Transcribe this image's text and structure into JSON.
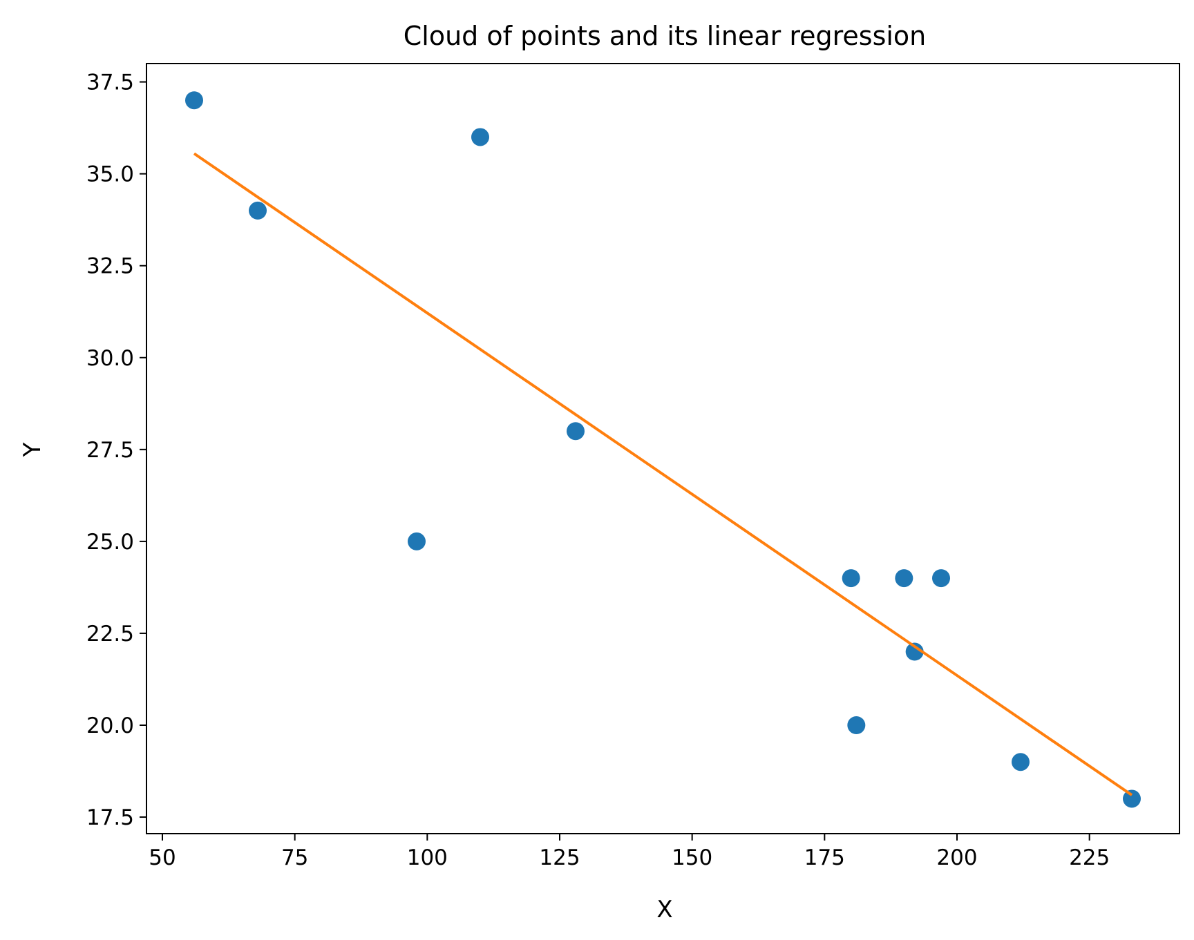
{
  "chart_data": {
    "type": "scatter",
    "title": "Cloud of points and its linear regression",
    "xlabel": "X",
    "ylabel": "Y",
    "xlim": [
      47,
      242
    ],
    "ylim": [
      17.05,
      38.0
    ],
    "xticks": [
      50,
      75,
      100,
      125,
      150,
      175,
      200,
      225
    ],
    "xtick_labels": [
      "50",
      "75",
      "100",
      "125",
      "150",
      "175",
      "200",
      "225"
    ],
    "yticks": [
      17.5,
      20.0,
      22.5,
      25.0,
      27.5,
      30.0,
      32.5,
      35.0,
      37.5
    ],
    "ytick_labels": [
      "17.5",
      "20.0",
      "22.5",
      "25.0",
      "27.5",
      "30.0",
      "32.5",
      "35.0",
      "37.5"
    ],
    "grid": false,
    "legend": "none",
    "series": [
      {
        "type": "scatter",
        "color": "#1f77b4",
        "points": [
          {
            "x": 56,
            "y": 37
          },
          {
            "x": 68,
            "y": 34
          },
          {
            "x": 98,
            "y": 25
          },
          {
            "x": 110,
            "y": 36
          },
          {
            "x": 128,
            "y": 28
          },
          {
            "x": 180,
            "y": 24
          },
          {
            "x": 181,
            "y": 20
          },
          {
            "x": 190,
            "y": 24
          },
          {
            "x": 192,
            "y": 22
          },
          {
            "x": 197,
            "y": 24
          },
          {
            "x": 212,
            "y": 19
          },
          {
            "x": 233,
            "y": 18
          }
        ]
      },
      {
        "type": "line",
        "color": "#ff7f0e",
        "points": [
          {
            "x": 56,
            "y": 35.55
          },
          {
            "x": 233,
            "y": 18.1
          }
        ]
      }
    ]
  }
}
